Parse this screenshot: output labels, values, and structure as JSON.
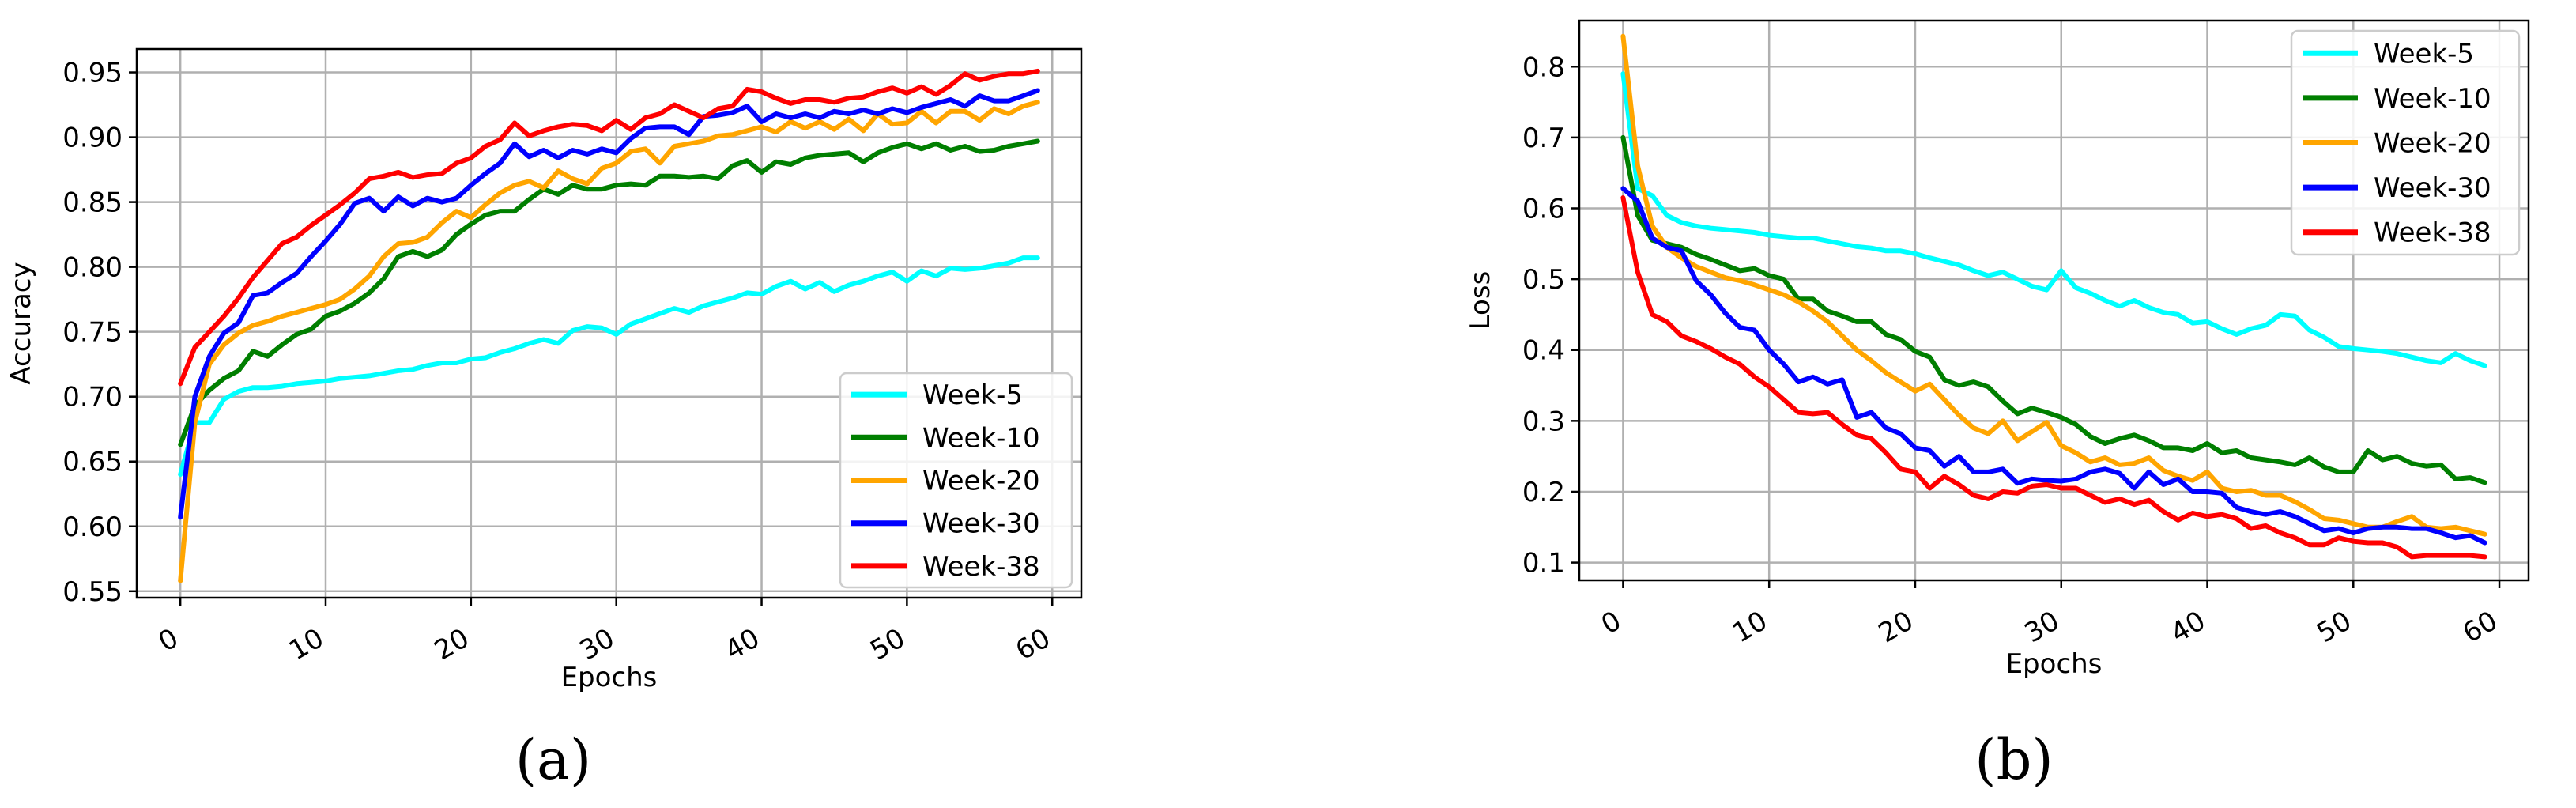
{
  "chart_data": [
    {
      "type": "line",
      "caption": "(a)",
      "title": "",
      "xlabel": "Epochs",
      "ylabel": "Accuracy",
      "xlim": [
        -3,
        62
      ],
      "ylim": [
        0.545,
        0.968
      ],
      "xticks": [
        0,
        10,
        20,
        30,
        40,
        50,
        60
      ],
      "yticks": [
        0.55,
        0.6,
        0.65,
        0.7,
        0.75,
        0.8,
        0.85,
        0.9,
        0.95
      ],
      "ytick_format": 2,
      "grid": true,
      "legend_position": "lower-right",
      "x": [
        0,
        1,
        2,
        3,
        4,
        5,
        6,
        7,
        8,
        9,
        10,
        11,
        12,
        13,
        14,
        15,
        16,
        17,
        18,
        19,
        20,
        21,
        22,
        23,
        24,
        25,
        26,
        27,
        28,
        29,
        30,
        31,
        32,
        33,
        34,
        35,
        36,
        37,
        38,
        39,
        40,
        41,
        42,
        43,
        44,
        45,
        46,
        47,
        48,
        49,
        50,
        51,
        52,
        53,
        54,
        55,
        56,
        57,
        58,
        59
      ],
      "series": [
        {
          "name": "Week-5",
          "color": "#00ffff",
          "values": [
            0.64,
            0.68,
            0.68,
            0.698,
            0.704,
            0.707,
            0.707,
            0.708,
            0.71,
            0.711,
            0.712,
            0.714,
            0.715,
            0.716,
            0.718,
            0.72,
            0.721,
            0.724,
            0.726,
            0.726,
            0.729,
            0.73,
            0.734,
            0.737,
            0.741,
            0.744,
            0.741,
            0.751,
            0.754,
            0.753,
            0.748,
            0.756,
            0.76,
            0.764,
            0.768,
            0.765,
            0.77,
            0.773,
            0.776,
            0.78,
            0.779,
            0.785,
            0.789,
            0.783,
            0.788,
            0.781,
            0.786,
            0.789,
            0.793,
            0.796,
            0.789,
            0.797,
            0.793,
            0.799,
            0.798,
            0.799,
            0.801,
            0.803,
            0.807,
            0.807
          ]
        },
        {
          "name": "Week-10",
          "color": "#007f00",
          "values": [
            0.663,
            0.693,
            0.705,
            0.714,
            0.72,
            0.735,
            0.731,
            0.74,
            0.748,
            0.752,
            0.762,
            0.766,
            0.772,
            0.78,
            0.791,
            0.808,
            0.812,
            0.808,
            0.813,
            0.825,
            0.833,
            0.84,
            0.843,
            0.843,
            0.852,
            0.86,
            0.856,
            0.863,
            0.86,
            0.86,
            0.863,
            0.864,
            0.863,
            0.87,
            0.87,
            0.869,
            0.87,
            0.868,
            0.878,
            0.882,
            0.873,
            0.881,
            0.879,
            0.884,
            0.886,
            0.887,
            0.888,
            0.881,
            0.888,
            0.892,
            0.895,
            0.891,
            0.895,
            0.89,
            0.893,
            0.889,
            0.89,
            0.893,
            0.895,
            0.897
          ]
        },
        {
          "name": "Week-20",
          "color": "#ffa500",
          "values": [
            0.558,
            0.68,
            0.725,
            0.74,
            0.749,
            0.755,
            0.758,
            0.762,
            0.765,
            0.768,
            0.771,
            0.775,
            0.783,
            0.793,
            0.808,
            0.818,
            0.819,
            0.823,
            0.834,
            0.843,
            0.838,
            0.848,
            0.857,
            0.863,
            0.866,
            0.861,
            0.874,
            0.868,
            0.864,
            0.876,
            0.88,
            0.889,
            0.891,
            0.88,
            0.893,
            0.895,
            0.897,
            0.901,
            0.902,
            0.905,
            0.908,
            0.904,
            0.912,
            0.907,
            0.912,
            0.906,
            0.914,
            0.905,
            0.918,
            0.91,
            0.911,
            0.92,
            0.911,
            0.92,
            0.92,
            0.913,
            0.922,
            0.918,
            0.924,
            0.927
          ]
        },
        {
          "name": "Week-30",
          "color": "#0000ff",
          "values": [
            0.607,
            0.7,
            0.731,
            0.749,
            0.757,
            0.778,
            0.78,
            0.788,
            0.795,
            0.808,
            0.82,
            0.833,
            0.849,
            0.853,
            0.843,
            0.854,
            0.847,
            0.853,
            0.85,
            0.853,
            0.863,
            0.872,
            0.88,
            0.895,
            0.885,
            0.89,
            0.884,
            0.89,
            0.887,
            0.891,
            0.888,
            0.899,
            0.907,
            0.908,
            0.908,
            0.902,
            0.916,
            0.917,
            0.919,
            0.924,
            0.912,
            0.918,
            0.915,
            0.918,
            0.915,
            0.92,
            0.918,
            0.921,
            0.918,
            0.922,
            0.919,
            0.923,
            0.926,
            0.929,
            0.924,
            0.932,
            0.928,
            0.928,
            0.932,
            0.936
          ]
        },
        {
          "name": "Week-38",
          "color": "#ff0000",
          "values": [
            0.71,
            0.738,
            0.75,
            0.762,
            0.776,
            0.792,
            0.805,
            0.818,
            0.823,
            0.832,
            0.84,
            0.848,
            0.857,
            0.868,
            0.87,
            0.873,
            0.869,
            0.871,
            0.872,
            0.88,
            0.884,
            0.893,
            0.898,
            0.911,
            0.901,
            0.905,
            0.908,
            0.91,
            0.909,
            0.905,
            0.913,
            0.906,
            0.915,
            0.918,
            0.925,
            0.92,
            0.915,
            0.922,
            0.924,
            0.937,
            0.935,
            0.93,
            0.926,
            0.929,
            0.929,
            0.927,
            0.93,
            0.931,
            0.935,
            0.938,
            0.934,
            0.939,
            0.933,
            0.94,
            0.949,
            0.944,
            0.947,
            0.949,
            0.949,
            0.951
          ]
        }
      ]
    },
    {
      "type": "line",
      "caption": "(b)",
      "title": "",
      "xlabel": "Epochs",
      "ylabel": "Loss",
      "xlim": [
        -3,
        62
      ],
      "ylim": [
        0.075,
        0.865
      ],
      "xticks": [
        0,
        10,
        20,
        30,
        40,
        50,
        60
      ],
      "yticks": [
        0.1,
        0.2,
        0.3,
        0.4,
        0.5,
        0.6,
        0.7,
        0.8
      ],
      "ytick_format": 1,
      "grid": true,
      "legend_position": "top-right",
      "x": [
        0,
        1,
        2,
        3,
        4,
        5,
        6,
        7,
        8,
        9,
        10,
        11,
        12,
        13,
        14,
        15,
        16,
        17,
        18,
        19,
        20,
        21,
        22,
        23,
        24,
        25,
        26,
        27,
        28,
        29,
        30,
        31,
        32,
        33,
        34,
        35,
        36,
        37,
        38,
        39,
        40,
        41,
        42,
        43,
        44,
        45,
        46,
        47,
        48,
        49,
        50,
        51,
        52,
        53,
        54,
        55,
        56,
        57,
        58,
        59
      ],
      "series": [
        {
          "name": "Week-5",
          "color": "#00ffff",
          "values": [
            0.79,
            0.628,
            0.618,
            0.59,
            0.58,
            0.575,
            0.572,
            0.57,
            0.568,
            0.566,
            0.562,
            0.56,
            0.558,
            0.558,
            0.554,
            0.55,
            0.546,
            0.544,
            0.54,
            0.54,
            0.536,
            0.53,
            0.525,
            0.52,
            0.512,
            0.505,
            0.51,
            0.5,
            0.49,
            0.485,
            0.512,
            0.488,
            0.48,
            0.47,
            0.462,
            0.47,
            0.46,
            0.453,
            0.45,
            0.438,
            0.44,
            0.43,
            0.422,
            0.43,
            0.435,
            0.45,
            0.448,
            0.428,
            0.418,
            0.405,
            0.402,
            0.4,
            0.398,
            0.395,
            0.39,
            0.385,
            0.382,
            0.395,
            0.385,
            0.378
          ]
        },
        {
          "name": "Week-10",
          "color": "#007f00",
          "values": [
            0.7,
            0.59,
            0.555,
            0.55,
            0.545,
            0.535,
            0.528,
            0.52,
            0.512,
            0.515,
            0.505,
            0.5,
            0.472,
            0.472,
            0.455,
            0.448,
            0.44,
            0.44,
            0.422,
            0.415,
            0.398,
            0.39,
            0.358,
            0.35,
            0.355,
            0.348,
            0.328,
            0.31,
            0.318,
            0.312,
            0.305,
            0.295,
            0.278,
            0.268,
            0.275,
            0.28,
            0.272,
            0.262,
            0.262,
            0.258,
            0.268,
            0.255,
            0.258,
            0.248,
            0.245,
            0.242,
            0.238,
            0.248,
            0.235,
            0.228,
            0.228,
            0.258,
            0.245,
            0.25,
            0.24,
            0.236,
            0.238,
            0.218,
            0.22,
            0.213
          ]
        },
        {
          "name": "Week-20",
          "color": "#ffa500",
          "values": [
            0.843,
            0.66,
            0.575,
            0.545,
            0.53,
            0.518,
            0.51,
            0.502,
            0.498,
            0.492,
            0.485,
            0.478,
            0.468,
            0.455,
            0.44,
            0.42,
            0.4,
            0.385,
            0.368,
            0.355,
            0.342,
            0.352,
            0.33,
            0.308,
            0.29,
            0.282,
            0.3,
            0.272,
            0.285,
            0.298,
            0.265,
            0.255,
            0.242,
            0.248,
            0.238,
            0.24,
            0.248,
            0.23,
            0.222,
            0.216,
            0.228,
            0.205,
            0.2,
            0.202,
            0.195,
            0.195,
            0.186,
            0.175,
            0.162,
            0.16,
            0.155,
            0.15,
            0.15,
            0.158,
            0.165,
            0.15,
            0.148,
            0.15,
            0.145,
            0.14
          ]
        },
        {
          "name": "Week-30",
          "color": "#0000ff",
          "values": [
            0.628,
            0.61,
            0.558,
            0.545,
            0.54,
            0.498,
            0.478,
            0.452,
            0.432,
            0.428,
            0.4,
            0.38,
            0.355,
            0.362,
            0.352,
            0.358,
            0.305,
            0.312,
            0.29,
            0.282,
            0.262,
            0.258,
            0.236,
            0.25,
            0.228,
            0.228,
            0.232,
            0.212,
            0.218,
            0.216,
            0.215,
            0.218,
            0.228,
            0.232,
            0.226,
            0.205,
            0.228,
            0.21,
            0.218,
            0.2,
            0.2,
            0.198,
            0.178,
            0.172,
            0.168,
            0.172,
            0.165,
            0.155,
            0.145,
            0.148,
            0.142,
            0.148,
            0.15,
            0.15,
            0.148,
            0.148,
            0.142,
            0.135,
            0.138,
            0.128
          ]
        },
        {
          "name": "Week-38",
          "color": "#ff0000",
          "values": [
            0.615,
            0.51,
            0.45,
            0.44,
            0.42,
            0.412,
            0.402,
            0.39,
            0.38,
            0.362,
            0.348,
            0.33,
            0.312,
            0.31,
            0.312,
            0.295,
            0.28,
            0.275,
            0.255,
            0.232,
            0.228,
            0.205,
            0.222,
            0.21,
            0.195,
            0.19,
            0.2,
            0.198,
            0.208,
            0.21,
            0.205,
            0.205,
            0.195,
            0.185,
            0.19,
            0.182,
            0.188,
            0.172,
            0.16,
            0.17,
            0.165,
            0.168,
            0.162,
            0.148,
            0.152,
            0.142,
            0.135,
            0.125,
            0.125,
            0.135,
            0.13,
            0.128,
            0.128,
            0.122,
            0.108,
            0.11,
            0.11,
            0.11,
            0.11,
            0.108
          ]
        }
      ]
    }
  ]
}
